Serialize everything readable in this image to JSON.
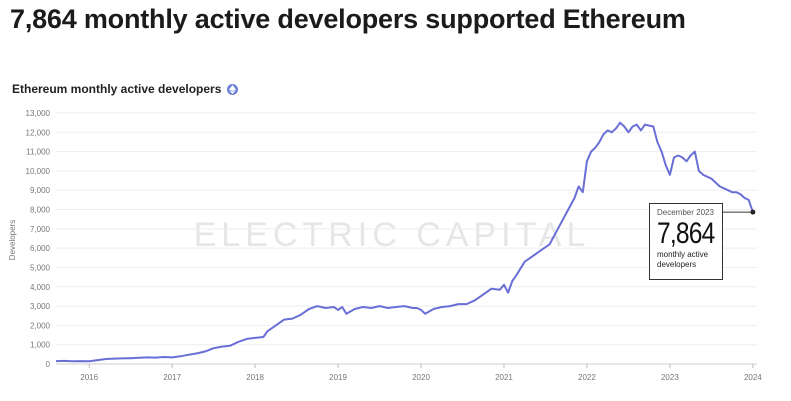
{
  "headline": "7,864 monthly active developers supported Ethereum",
  "chart_data": {
    "type": "line",
    "title": "Ethereum monthly active developers",
    "ylabel": "Developers",
    "xlabel": "",
    "ylim": [
      0,
      13000
    ],
    "yticks": [
      0,
      1000,
      2000,
      3000,
      4000,
      5000,
      6000,
      7000,
      8000,
      9000,
      10000,
      11000,
      12000,
      13000
    ],
    "ytick_labels": [
      "0",
      "1,000",
      "2,000",
      "3,000",
      "4,000",
      "5,000",
      "6,000",
      "7,000",
      "8,000",
      "9,000",
      "10,000",
      "11,000",
      "12,000",
      "13,000"
    ],
    "xticks": [
      2016,
      2017,
      2018,
      2019,
      2020,
      2021,
      2022,
      2023,
      2024
    ],
    "xlim": [
      2015.6,
      2024.05
    ],
    "grid": true,
    "line_color": "#6a6fd6",
    "series": [
      {
        "x": [
          2015.6,
          2015.7,
          2015.8,
          2015.9,
          2016.0,
          2016.1,
          2016.2,
          2016.3,
          2016.4,
          2016.5,
          2016.6,
          2016.7,
          2016.8,
          2016.9,
          2017.0,
          2017.1,
          2017.2,
          2017.3,
          2017.4,
          2017.5,
          2017.6,
          2017.7,
          2017.8,
          2017.9,
          2018.0,
          2018.1,
          2018.15,
          2018.25,
          2018.35,
          2018.45,
          2018.55,
          2018.65,
          2018.75,
          2018.85,
          2018.95,
          2019.0,
          2019.05,
          2019.1,
          2019.2,
          2019.3,
          2019.4,
          2019.5,
          2019.6,
          2019.7,
          2019.8,
          2019.9,
          2019.95,
          2020.0,
          2020.05,
          2020.15,
          2020.25,
          2020.35,
          2020.45,
          2020.55,
          2020.65,
          2020.75,
          2020.85,
          2020.95,
          2021.0,
          2021.05,
          2021.1,
          2021.15,
          2021.25,
          2021.35,
          2021.45,
          2021.55,
          2021.65,
          2021.75,
          2021.85,
          2021.9,
          2021.95,
          2022.0,
          2022.05,
          2022.1,
          2022.15,
          2022.2,
          2022.25,
          2022.3,
          2022.35,
          2022.4,
          2022.45,
          2022.5,
          2022.55,
          2022.6,
          2022.65,
          2022.7,
          2022.75,
          2022.8,
          2022.85,
          2022.9,
          2022.95,
          2023.0,
          2023.05,
          2023.1,
          2023.15,
          2023.2,
          2023.25,
          2023.3,
          2023.35,
          2023.4,
          2023.45,
          2023.5,
          2023.55,
          2023.6,
          2023.65,
          2023.7,
          2023.75,
          2023.8,
          2023.85,
          2023.9,
          2023.95,
          2024.0
        ],
        "y": [
          150,
          160,
          140,
          150,
          140,
          200,
          260,
          280,
          290,
          300,
          320,
          340,
          330,
          360,
          340,
          400,
          480,
          550,
          650,
          820,
          900,
          950,
          1150,
          1300,
          1350,
          1400,
          1700,
          2000,
          2300,
          2350,
          2550,
          2850,
          3000,
          2900,
          2950,
          2800,
          2950,
          2600,
          2850,
          2950,
          2900,
          3000,
          2900,
          2950,
          3000,
          2900,
          2900,
          2800,
          2600,
          2850,
          2950,
          3000,
          3100,
          3100,
          3300,
          3600,
          3900,
          3850,
          4100,
          3700,
          4300,
          4600,
          5300,
          5600,
          5900,
          6200,
          7000,
          7800,
          8600,
          9200,
          8900,
          10500,
          11000,
          11200,
          11500,
          11900,
          12100,
          12000,
          12200,
          12500,
          12300,
          12000,
          12300,
          12400,
          12100,
          12400,
          12350,
          12300,
          11500,
          11000,
          10300,
          9800,
          10700,
          10800,
          10700,
          10500,
          10800,
          11000,
          10000,
          9800,
          9700,
          9600,
          9400,
          9200,
          9100,
          9000,
          8900,
          8900,
          8800,
          8600,
          8500,
          7864
        ]
      }
    ],
    "watermark": "ELECTRIC CAPITAL"
  },
  "callout": {
    "date": "December 2023",
    "value": "7,864",
    "text_line1": "monthly active",
    "text_line2": "developers"
  }
}
